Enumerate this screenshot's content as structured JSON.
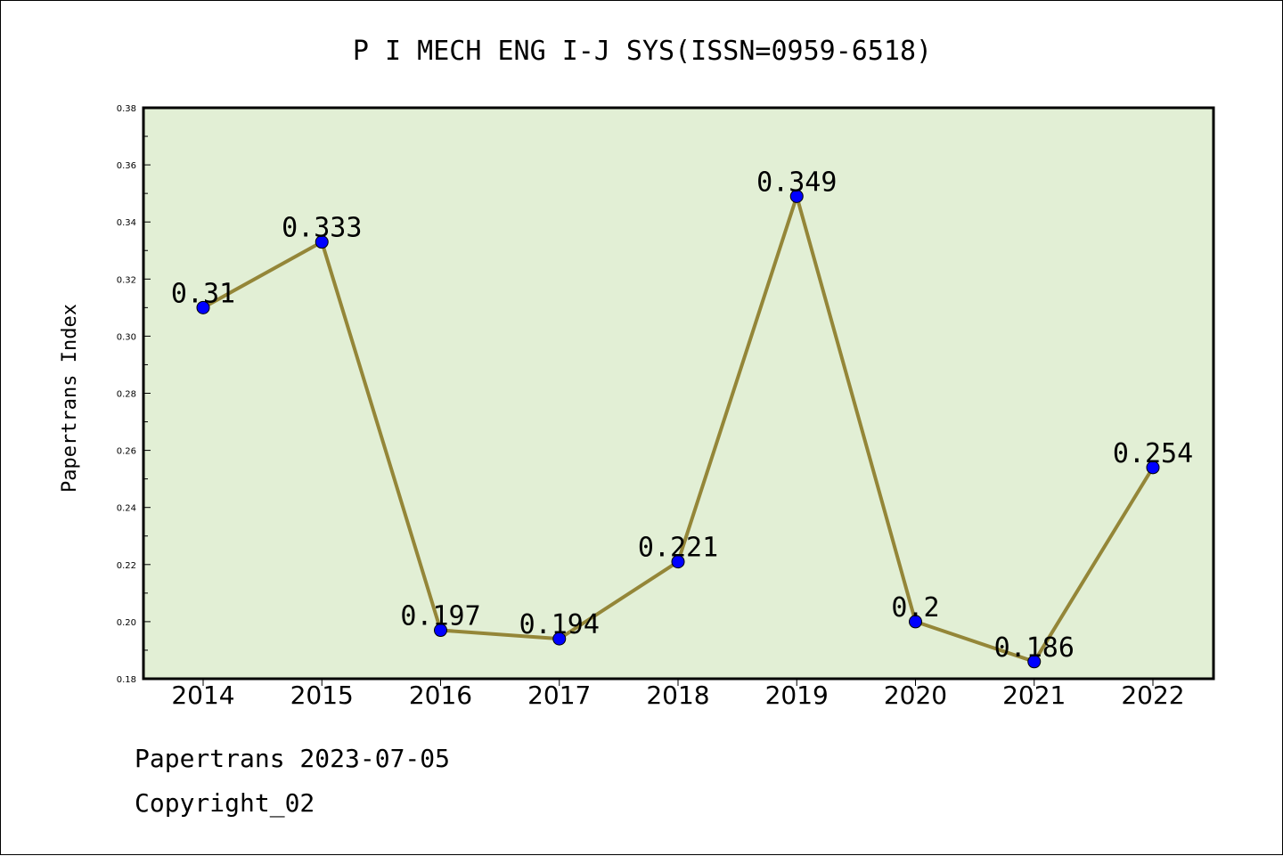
{
  "chart_data": {
    "type": "line",
    "title": "P I MECH ENG I-J SYS(ISSN=0959-6518)",
    "ylabel": "Papertrans Index",
    "xlabel": "",
    "categories": [
      "2014",
      "2015",
      "2016",
      "2017",
      "2018",
      "2019",
      "2020",
      "2021",
      "2022"
    ],
    "values": [
      0.31,
      0.333,
      0.197,
      0.194,
      0.221,
      0.349,
      0.2,
      0.186,
      0.254
    ],
    "data_labels": [
      "0.31",
      "0.333",
      "0.197",
      "0.194",
      "0.221",
      "0.349",
      "0.2",
      "0.186",
      "0.254"
    ],
    "ylim": [
      0.18,
      0.38
    ],
    "yticks": [
      "0.18",
      "0.20",
      "0.22",
      "0.24",
      "0.26",
      "0.28",
      "0.30",
      "0.32",
      "0.34",
      "0.36",
      "0.38"
    ],
    "grid": false,
    "legend": "none",
    "colors": {
      "line": "#948638",
      "marker": "#0000ff",
      "plot_bg": "#e2efd5"
    }
  },
  "footer": {
    "line1": "Papertrans 2023-07-05",
    "line2": "Copyright_02"
  }
}
